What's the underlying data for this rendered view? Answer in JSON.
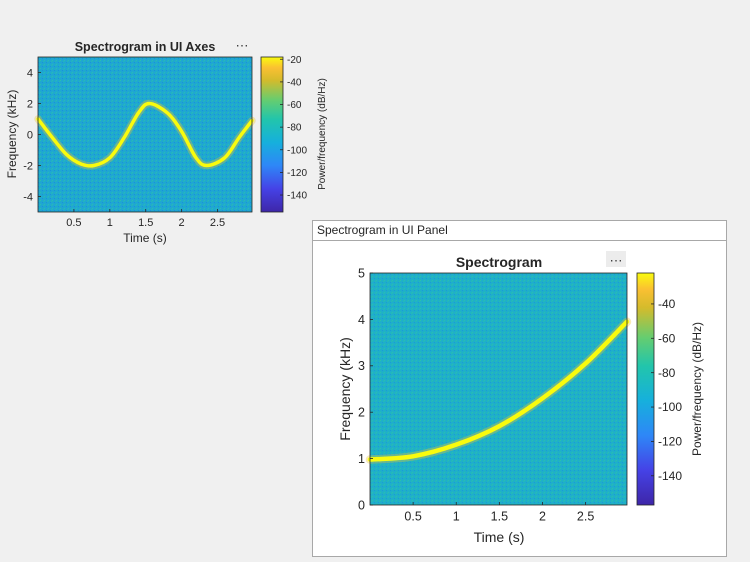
{
  "colors": {
    "background": "#f0f0f0",
    "panel_background": "#ffffff",
    "axis_text": "#262626",
    "curve": "#f9fb0e",
    "colormap": "parula"
  },
  "axes_toolbar_icon": "ellipsis-icon",
  "panel": {
    "title": "Spectrogram in UI Panel"
  },
  "chart_data": [
    {
      "type": "heatmap",
      "title": "Spectrogram in UI Axes",
      "xlabel": "Time (s)",
      "ylabel": "Frequency (kHz)",
      "xlim": [
        0,
        2.98
      ],
      "ylim": [
        -5,
        5
      ],
      "xticks": [
        0.5,
        1,
        1.5,
        2,
        2.5
      ],
      "xtick_labels": [
        "0.5",
        "1",
        "1.5",
        "2",
        "2.5"
      ],
      "yticks": [
        -4,
        -2,
        0,
        2,
        4
      ],
      "ytick_labels": [
        "-4",
        "-2",
        "0",
        "2",
        "4"
      ],
      "colorbar": {
        "label": "Power/frequency (dB/Hz)",
        "range": [
          -155,
          -18
        ],
        "ticks": [
          -20,
          -40,
          -60,
          -80,
          -100,
          -120,
          -140
        ],
        "tick_labels": [
          "-20",
          "-40",
          "-60",
          "-80",
          "-100",
          "-120",
          "-140"
        ]
      },
      "ridge": {
        "description": "sinusoidal frequency ridge",
        "x": [
          0,
          0.2,
          0.4,
          0.6,
          0.78,
          1.0,
          1.2,
          1.4,
          1.55,
          1.8,
          2.0,
          2.2,
          2.35,
          2.6,
          2.8,
          2.98
        ],
        "y": [
          1.0,
          -0.2,
          -1.3,
          -1.9,
          -2.0,
          -1.5,
          -0.2,
          1.4,
          2.0,
          1.4,
          0.2,
          -1.5,
          -2.0,
          -1.5,
          -0.2,
          0.9
        ]
      }
    },
    {
      "type": "heatmap",
      "title": "Spectrogram",
      "xlabel": "Time (s)",
      "ylabel": "Frequency (kHz)",
      "xlim": [
        0,
        2.98
      ],
      "ylim": [
        0,
        5
      ],
      "xticks": [
        0.5,
        1,
        1.5,
        2,
        2.5
      ],
      "xtick_labels": [
        "0.5",
        "1",
        "1.5",
        "2",
        "2.5"
      ],
      "yticks": [
        0,
        1,
        2,
        3,
        4,
        5
      ],
      "ytick_labels": [
        "0",
        "1",
        "2",
        "3",
        "4",
        "5"
      ],
      "colorbar": {
        "label": "Power/frequency (dB/Hz)",
        "range": [
          -157,
          -22
        ],
        "ticks": [
          -40,
          -60,
          -80,
          -100,
          -120,
          -140
        ],
        "tick_labels": [
          "-40",
          "-60",
          "-80",
          "-100",
          "-120",
          "-140"
        ]
      },
      "ridge": {
        "description": "quadratic chirp ridge",
        "x": [
          0,
          0.5,
          1.0,
          1.5,
          2.0,
          2.5,
          2.98
        ],
        "y": [
          0.98,
          1.05,
          1.3,
          1.7,
          2.3,
          3.05,
          3.95
        ]
      }
    }
  ]
}
